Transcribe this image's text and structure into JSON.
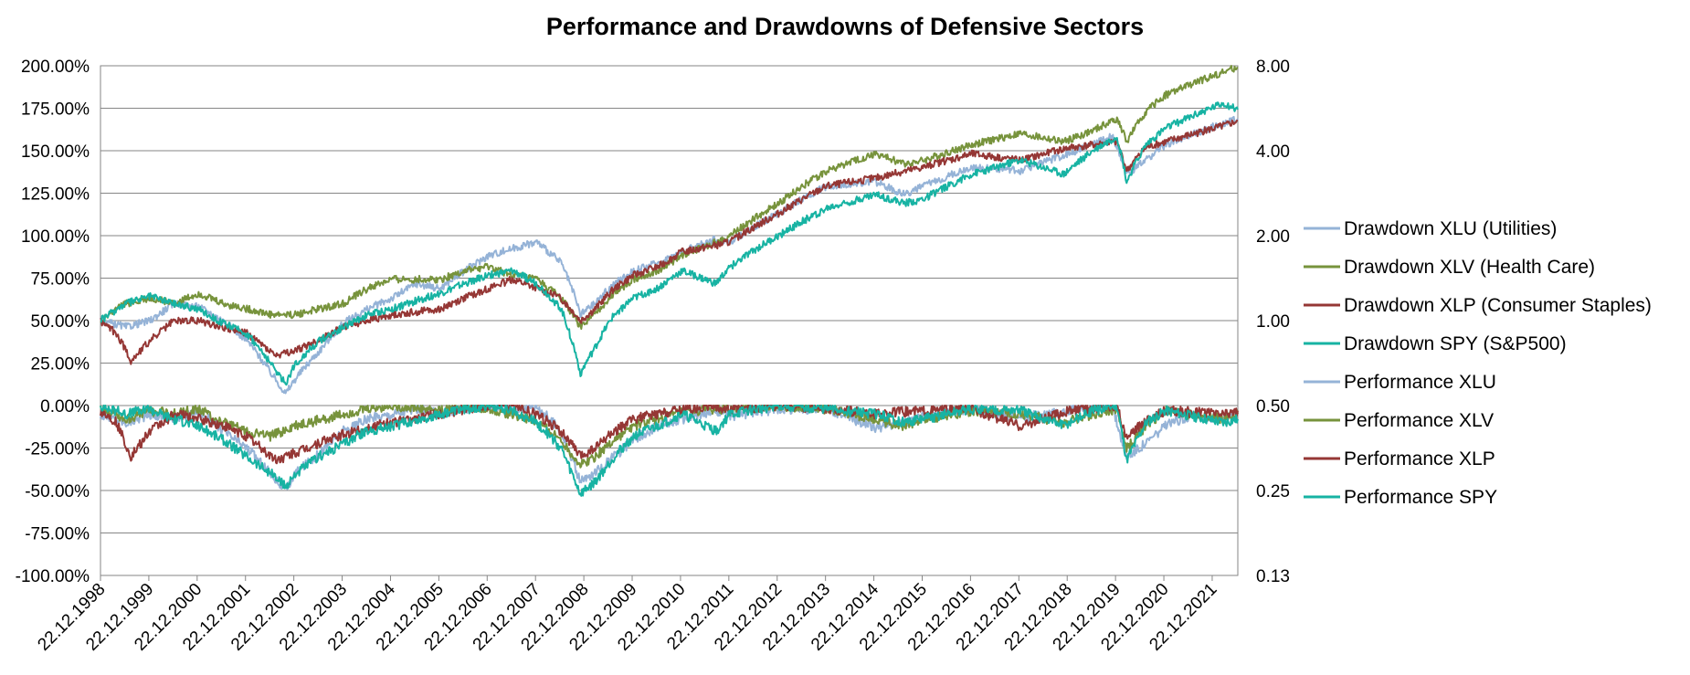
{
  "chart_data": {
    "type": "line",
    "title": "Performance and Drawdowns of Defensive Sectors",
    "xlabel": "",
    "ylabel": "",
    "x_tick_labels": [
      "22.12.1998",
      "22.12.1999",
      "22.12.2000",
      "22.12.2001",
      "22.12.2002",
      "22.12.2003",
      "22.12.2004",
      "22.12.2005",
      "22.12.2006",
      "22.12.2007",
      "22.12.2008",
      "22.12.2009",
      "22.12.2010",
      "22.12.2011",
      "22.12.2012",
      "22.12.2013",
      "22.12.2014",
      "22.12.2015",
      "22.12.2016",
      "22.12.2017",
      "22.12.2018",
      "22.12.2019",
      "22.12.2020",
      "22.12.2021"
    ],
    "x_range": [
      1998.97,
      2022.5
    ],
    "y_left": {
      "ticks": [
        "-100.00%",
        "-75.00%",
        "-50.00%",
        "-25.00%",
        "0.00%",
        "25.00%",
        "50.00%",
        "75.00%",
        "100.00%",
        "125.00%",
        "150.00%",
        "175.00%",
        "200.00%"
      ],
      "range": [
        -100,
        200
      ],
      "unit": "%"
    },
    "y_right": {
      "ticks": [
        "0.13",
        "0.25",
        "0.50",
        "1.00",
        "2.00",
        "4.00",
        "8.00"
      ],
      "range": [
        0.125,
        8
      ],
      "scale": "log2"
    },
    "grid": true,
    "legend_position": "right",
    "series": [
      {
        "name": "Drawdown XLU (Utilities)",
        "axis": "left",
        "color": "#95b3d7",
        "x": [
          1998.97,
          1999.5,
          2000.0,
          2000.5,
          2001.0,
          2001.5,
          2002.0,
          2002.5,
          2002.8,
          2003.0,
          2003.5,
          2004.0,
          2004.5,
          2005.0,
          2005.5,
          2006.0,
          2006.5,
          2007.0,
          2007.5,
          2008.0,
          2008.5,
          2008.9,
          2009.2,
          2009.6,
          2010.0,
          2010.5,
          2011.0,
          2011.7,
          2012.0,
          2013.0,
          2014.0,
          2015.0,
          2015.6,
          2016.0,
          2017.0,
          2018.0,
          2019.0,
          2019.9,
          2020.2,
          2020.6,
          2021.0,
          2021.6,
          2022.2,
          2022.5
        ],
        "y": [
          -5,
          -10,
          -5,
          -8,
          -3,
          -15,
          -25,
          -40,
          -50,
          -40,
          -28,
          -15,
          -8,
          -5,
          -2,
          -5,
          -2,
          0,
          -2,
          0,
          -15,
          -45,
          -40,
          -30,
          -20,
          -12,
          -8,
          -3,
          -6,
          -2,
          -2,
          -13,
          -10,
          -6,
          -3,
          -7,
          -3,
          0,
          -30,
          -22,
          -12,
          -5,
          -8,
          -5
        ]
      },
      {
        "name": "Drawdown XLV (Health Care)",
        "axis": "left",
        "color": "#77933c",
        "x": [
          1998.97,
          1999.5,
          2000.0,
          2000.5,
          2001.0,
          2001.5,
          2002.0,
          2002.5,
          2003.0,
          2004.0,
          2004.5,
          2005.0,
          2006.0,
          2006.5,
          2007.0,
          2007.5,
          2008.0,
          2008.5,
          2008.9,
          2009.2,
          2009.6,
          2010.0,
          2010.5,
          2011.0,
          2011.7,
          2012.0,
          2013.0,
          2014.0,
          2015.0,
          2015.6,
          2016.0,
          2017.0,
          2018.0,
          2018.9,
          2019.5,
          2020.0,
          2020.2,
          2020.6,
          2021.0,
          2022.2,
          2022.5
        ],
        "y": [
          0,
          -8,
          -3,
          -5,
          -2,
          -10,
          -15,
          -18,
          -12,
          -5,
          -2,
          0,
          -3,
          0,
          -2,
          -5,
          -10,
          -20,
          -35,
          -30,
          -20,
          -12,
          -8,
          -4,
          -2,
          -3,
          0,
          -2,
          -8,
          -12,
          -8,
          -3,
          -5,
          -10,
          -5,
          -2,
          -25,
          -12,
          -3,
          -8,
          -5
        ]
      },
      {
        "name": "Drawdown XLP (Consumer Staples)",
        "axis": "left",
        "color": "#953735",
        "x": [
          1998.97,
          1999.3,
          1999.6,
          2000.0,
          2000.5,
          2001.0,
          2001.5,
          2002.0,
          2002.6,
          2003.0,
          2003.5,
          2004.0,
          2004.5,
          2005.0,
          2006.0,
          2006.5,
          2007.0,
          2007.5,
          2008.0,
          2008.5,
          2008.9,
          2009.2,
          2009.6,
          2010.0,
          2010.5,
          2011.0,
          2011.7,
          2012.0,
          2013.0,
          2014.0,
          2015.0,
          2016.0,
          2017.0,
          2018.0,
          2019.0,
          2020.0,
          2020.2,
          2020.6,
          2021.0,
          2022.2,
          2022.5
        ],
        "y": [
          -3,
          -10,
          -30,
          -15,
          -5,
          -8,
          -12,
          -18,
          -32,
          -28,
          -22,
          -17,
          -13,
          -10,
          -5,
          -2,
          0,
          0,
          -5,
          -15,
          -30,
          -25,
          -15,
          -8,
          -5,
          -2,
          0,
          -3,
          0,
          -2,
          -5,
          -3,
          -2,
          -12,
          -3,
          0,
          -20,
          -8,
          -3,
          -5,
          -3
        ]
      },
      {
        "name": "Drawdown SPY (S&P500)",
        "axis": "left",
        "color": "#17b3a3",
        "x": [
          1998.97,
          1999.5,
          2000.0,
          2000.5,
          2001.0,
          2001.5,
          2002.0,
          2002.5,
          2002.8,
          2003.0,
          2003.5,
          2004.0,
          2004.5,
          2005.0,
          2006.0,
          2006.5,
          2007.0,
          2007.5,
          2008.0,
          2008.5,
          2008.9,
          2009.2,
          2009.6,
          2010.0,
          2010.5,
          2011.0,
          2011.7,
          2012.0,
          2013.0,
          2014.0,
          2015.0,
          2015.6,
          2016.0,
          2017.0,
          2018.0,
          2018.9,
          2019.5,
          2020.0,
          2020.2,
          2020.6,
          2021.0,
          2022.2,
          2022.5
        ],
        "y": [
          0,
          -5,
          -2,
          -8,
          -12,
          -20,
          -30,
          -40,
          -48,
          -40,
          -30,
          -22,
          -15,
          -12,
          -5,
          -2,
          0,
          -3,
          -10,
          -25,
          -52,
          -45,
          -30,
          -18,
          -12,
          -5,
          -15,
          -5,
          0,
          -2,
          -5,
          -10,
          -8,
          -2,
          -3,
          -12,
          -3,
          0,
          -32,
          -10,
          -3,
          -10,
          -8
        ]
      },
      {
        "name": "Performance XLU",
        "axis": "right",
        "color": "#95b3d7",
        "x": [
          1998.97,
          1999.5,
          2000.0,
          2000.5,
          2001.0,
          2001.5,
          2002.0,
          2002.5,
          2002.8,
          2003.0,
          2003.5,
          2004.0,
          2004.5,
          2005.0,
          2005.5,
          2006.0,
          2006.5,
          2007.0,
          2007.5,
          2008.0,
          2008.5,
          2008.9,
          2009.2,
          2009.6,
          2010.0,
          2010.5,
          2011.0,
          2011.7,
          2012.0,
          2013.0,
          2014.0,
          2015.0,
          2015.6,
          2016.0,
          2017.0,
          2018.0,
          2019.0,
          2019.9,
          2020.2,
          2020.6,
          2021.0,
          2021.6,
          2022.2,
          2022.5
        ],
        "y": [
          1.0,
          0.95,
          1.0,
          1.15,
          1.12,
          1.0,
          0.85,
          0.65,
          0.55,
          0.62,
          0.78,
          0.98,
          1.1,
          1.2,
          1.35,
          1.3,
          1.5,
          1.7,
          1.8,
          1.9,
          1.6,
          1.05,
          1.15,
          1.35,
          1.5,
          1.6,
          1.75,
          1.95,
          1.9,
          2.4,
          3.0,
          3.1,
          2.8,
          3.0,
          3.5,
          3.4,
          3.9,
          4.5,
          3.3,
          3.7,
          4.2,
          4.6,
          5.0,
          5.2
        ]
      },
      {
        "name": "Performance XLV",
        "axis": "right",
        "color": "#77933c",
        "x": [
          1998.97,
          1999.5,
          2000.0,
          2000.5,
          2001.0,
          2001.5,
          2002.0,
          2002.5,
          2003.0,
          2004.0,
          2004.5,
          2005.0,
          2006.0,
          2006.5,
          2007.0,
          2007.5,
          2008.0,
          2008.5,
          2008.9,
          2009.2,
          2009.6,
          2010.0,
          2010.5,
          2011.0,
          2011.7,
          2012.0,
          2013.0,
          2014.0,
          2015.0,
          2015.6,
          2016.0,
          2017.0,
          2018.0,
          2018.9,
          2019.5,
          2020.0,
          2020.2,
          2020.6,
          2021.0,
          2022.2,
          2022.5
        ],
        "y": [
          1.0,
          1.15,
          1.2,
          1.15,
          1.25,
          1.15,
          1.1,
          1.05,
          1.05,
          1.15,
          1.3,
          1.4,
          1.4,
          1.5,
          1.55,
          1.45,
          1.4,
          1.2,
          0.95,
          1.05,
          1.25,
          1.4,
          1.5,
          1.7,
          1.9,
          2.0,
          2.6,
          3.4,
          3.9,
          3.6,
          3.7,
          4.2,
          4.6,
          4.3,
          4.7,
          5.2,
          4.3,
          5.5,
          6.3,
          7.6,
          7.9
        ]
      },
      {
        "name": "Performance XLP",
        "axis": "right",
        "color": "#953735",
        "x": [
          1998.97,
          1999.3,
          1999.6,
          2000.0,
          2000.5,
          2001.0,
          2001.5,
          2002.0,
          2002.6,
          2003.0,
          2003.5,
          2004.0,
          2004.5,
          2005.0,
          2006.0,
          2006.5,
          2007.0,
          2007.5,
          2008.0,
          2008.5,
          2008.9,
          2009.2,
          2009.6,
          2010.0,
          2010.5,
          2011.0,
          2011.7,
          2012.0,
          2013.0,
          2014.0,
          2015.0,
          2016.0,
          2017.0,
          2018.0,
          2019.0,
          2020.0,
          2020.2,
          2020.6,
          2021.0,
          2022.2,
          2022.5
        ],
        "y": [
          1.0,
          0.9,
          0.72,
          0.85,
          1.0,
          1.0,
          0.95,
          0.9,
          0.75,
          0.78,
          0.85,
          0.95,
          1.0,
          1.05,
          1.1,
          1.2,
          1.3,
          1.4,
          1.3,
          1.2,
          1.0,
          1.1,
          1.3,
          1.45,
          1.55,
          1.75,
          1.85,
          1.9,
          2.4,
          3.0,
          3.2,
          3.5,
          3.9,
          3.7,
          4.1,
          4.3,
          3.4,
          4.1,
          4.3,
          4.9,
          5.1
        ]
      },
      {
        "name": "Performance SPY",
        "axis": "right",
        "color": "#17b3a3",
        "x": [
          1998.97,
          1999.5,
          2000.0,
          2000.5,
          2001.0,
          2001.5,
          2002.0,
          2002.5,
          2002.8,
          2003.0,
          2003.5,
          2004.0,
          2004.5,
          2005.0,
          2006.0,
          2006.5,
          2007.0,
          2007.5,
          2008.0,
          2008.5,
          2008.9,
          2009.2,
          2009.6,
          2010.0,
          2010.5,
          2011.0,
          2011.7,
          2012.0,
          2013.0,
          2014.0,
          2015.0,
          2015.6,
          2016.0,
          2017.0,
          2018.0,
          2018.9,
          2019.5,
          2020.0,
          2020.2,
          2020.6,
          2021.0,
          2022.2,
          2022.5
        ],
        "y": [
          1.0,
          1.15,
          1.22,
          1.15,
          1.1,
          0.98,
          0.9,
          0.7,
          0.6,
          0.7,
          0.85,
          0.95,
          1.05,
          1.1,
          1.25,
          1.35,
          1.45,
          1.5,
          1.35,
          1.1,
          0.65,
          0.8,
          1.05,
          1.2,
          1.3,
          1.5,
          1.35,
          1.55,
          2.0,
          2.5,
          2.8,
          2.6,
          2.7,
          3.3,
          3.7,
          3.3,
          4.0,
          4.5,
          3.1,
          4.2,
          4.8,
          5.9,
          5.6
        ]
      }
    ]
  }
}
